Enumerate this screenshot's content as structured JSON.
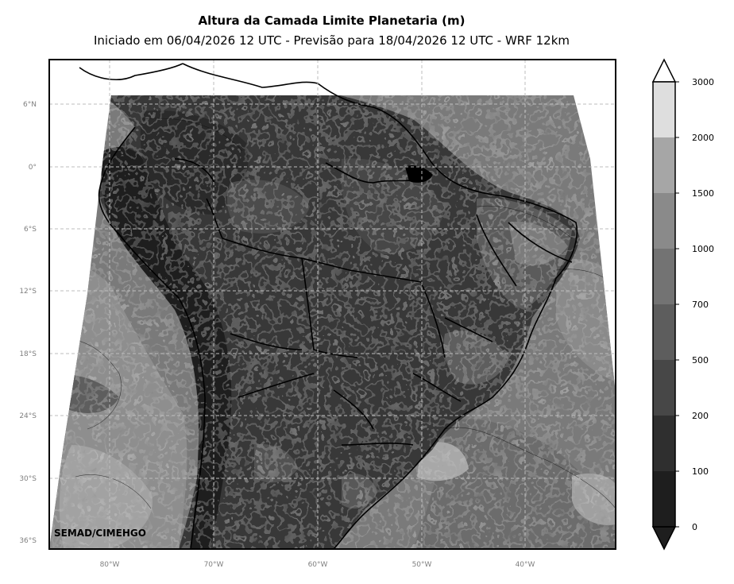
{
  "title": "Altura da Camada Limite Planetaria (m)",
  "subtitle": "Iniciado em 06/04/2026 12 UTC - Previsão para 18/04/2026 12 UTC - WRF 12km",
  "credit": "SEMAD/CIMEHGO",
  "lat_labels": [
    "6°N",
    "0°",
    "6°S",
    "12°S",
    "18°S",
    "24°S",
    "30°S",
    "36°S"
  ],
  "lon_labels": [
    "80°W",
    "70°W",
    "60°W",
    "50°W",
    "40°W"
  ],
  "colorbar": {
    "levels": [
      "0",
      "100",
      "200",
      "500",
      "700",
      "1000",
      "1500",
      "2000",
      "3000"
    ],
    "colors": [
      "#1e1e1e",
      "#2f2f2f",
      "#474747",
      "#5d5d5d",
      "#737373",
      "#8a8a8a",
      "#a6a6a6",
      "#dedede"
    ],
    "extend": "both"
  },
  "map": {
    "field": "Planetary boundary layer height",
    "grid": true,
    "grid_style": "dashed",
    "ocean_color": "#7a7a7a",
    "land_color": "#383838"
  }
}
